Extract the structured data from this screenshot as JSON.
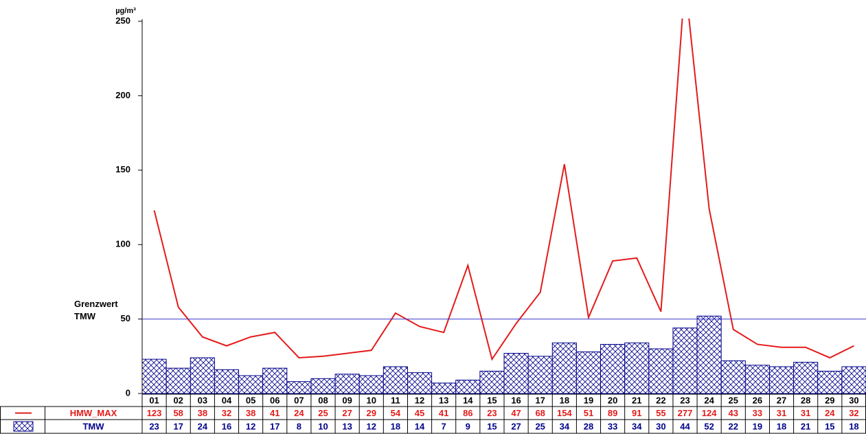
{
  "chart_data": {
    "type": "bar",
    "y_unit": "µg/m³",
    "categories": [
      "01",
      "02",
      "03",
      "04",
      "05",
      "06",
      "07",
      "08",
      "09",
      "10",
      "11",
      "12",
      "13",
      "14",
      "15",
      "16",
      "17",
      "18",
      "19",
      "20",
      "21",
      "22",
      "23",
      "24",
      "25",
      "26",
      "27",
      "28",
      "29",
      "30"
    ],
    "series": [
      {
        "name": "HMW_MAX",
        "type": "line",
        "color": "#e41a1a",
        "values": [
          123,
          58,
          38,
          32,
          38,
          41,
          24,
          25,
          27,
          29,
          54,
          45,
          41,
          86,
          23,
          47,
          68,
          154,
          51,
          89,
          91,
          55,
          277,
          124,
          43,
          33,
          31,
          31,
          24,
          32
        ]
      },
      {
        "name": "TMW",
        "type": "bar",
        "color": "#00008b",
        "values": [
          23,
          17,
          24,
          16,
          12,
          17,
          8,
          10,
          13,
          12,
          18,
          14,
          7,
          9,
          15,
          27,
          25,
          34,
          28,
          33,
          34,
          30,
          44,
          52,
          22,
          19,
          18,
          21,
          15,
          18
        ]
      }
    ],
    "threshold": {
      "value": 50,
      "lines": [
        "Grenzwert",
        "TMW"
      ],
      "color": "#3a3ad0"
    },
    "ylim": [
      0,
      250
    ],
    "yticks": [
      0,
      50,
      100,
      150,
      200,
      250
    ]
  }
}
